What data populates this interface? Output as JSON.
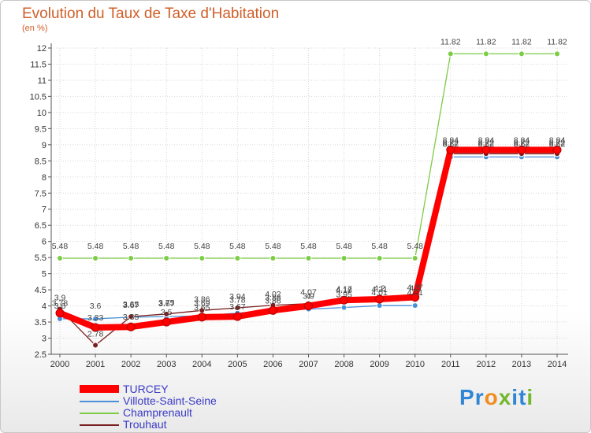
{
  "chart_data": {
    "type": "line",
    "title": "Evolution du Taux de Taxe d'Habitation",
    "ylabel": "(en %)",
    "xlabel": "",
    "ylim": [
      2.5,
      12
    ],
    "yticks": [
      "2.5",
      "3",
      "3.5",
      "4",
      "4.5",
      "5",
      "5.5",
      "6",
      "6.5",
      "7",
      "7.5",
      "8",
      "8.5",
      "9",
      "9.5",
      "10",
      "10.5",
      "11",
      "11.5",
      "12"
    ],
    "categories": [
      "2000",
      "2001",
      "2002",
      "2003",
      "2004",
      "2005",
      "2006",
      "2007",
      "2008",
      "2009",
      "2010",
      "2011",
      "2012",
      "2013",
      "2014"
    ],
    "series": [
      {
        "name": "TURCEY",
        "color": "#ff0000",
        "values": [
          3.78,
          3.33,
          3.35,
          3.5,
          3.65,
          3.67,
          3.86,
          4.0,
          4.18,
          4.21,
          4.27,
          8.84,
          8.84,
          8.84,
          8.84
        ],
        "labels": [
          "3.78",
          "3.33",
          "3.35",
          "3.5",
          "3.65",
          "3.67",
          "3.86",
          "4",
          "4.18",
          "4.21",
          "4.27",
          "8.84",
          "8.84",
          "8.84",
          "8.84"
        ]
      },
      {
        "name": "Villotte-Saint-Seine",
        "color": "#4a90d9",
        "values": [
          3.6,
          3.6,
          3.65,
          3.67,
          3.69,
          3.78,
          3.86,
          3.9,
          3.95,
          4.01,
          4.01,
          8.62,
          8.62,
          8.62,
          8.62
        ],
        "labels": [
          "3.6",
          "3.6",
          "3.65",
          "3.67",
          "3.69",
          "3.78",
          "3.86",
          "3.9",
          "3.95",
          "4.01",
          "4.01",
          "8.62",
          "8.62",
          "8.62",
          "8.62"
        ]
      },
      {
        "name": "Champrenault",
        "color": "#7ccc44",
        "values": [
          5.48,
          5.48,
          5.48,
          5.48,
          5.48,
          5.48,
          5.48,
          5.48,
          5.48,
          5.48,
          5.48,
          11.82,
          11.82,
          11.82,
          11.82
        ],
        "labels": [
          "5.48",
          "5.48",
          "5.48",
          "5.48",
          "5.48",
          "5.48",
          "5.48",
          "5.48",
          "5.48",
          "5.48",
          "5.48",
          "11.82",
          "11.82",
          "11.82",
          "11.82"
        ]
      },
      {
        "name": "Trouhaut",
        "color": "#7a1f1f",
        "values": [
          3.9,
          2.78,
          3.67,
          3.75,
          3.86,
          3.94,
          4.02,
          4.07,
          4.17,
          4.2,
          4.2,
          8.72,
          8.72,
          8.72,
          8.72
        ],
        "labels": [
          "3.9",
          "2.78",
          "3.67",
          "3.75",
          "3.86",
          "3.94",
          "4.02",
          "4.07",
          "4.17",
          "4.2",
          "4.2",
          "8.72",
          "8.72",
          "8.72",
          "8.72"
        ]
      }
    ],
    "legend": [
      "TURCEY",
      "Villotte-Saint-Seine",
      "Champrenault",
      "Trouhaut"
    ],
    "legend_position": "bottom-left"
  },
  "logo": {
    "letters": [
      "P",
      "r",
      "o",
      "x",
      "i",
      "t",
      "i"
    ],
    "colors": [
      "#2f86d6",
      "#2f86d6",
      "#f28c1e",
      "#73b72e",
      "#2f86d6",
      "#2f86d6",
      "#73b72e"
    ]
  }
}
